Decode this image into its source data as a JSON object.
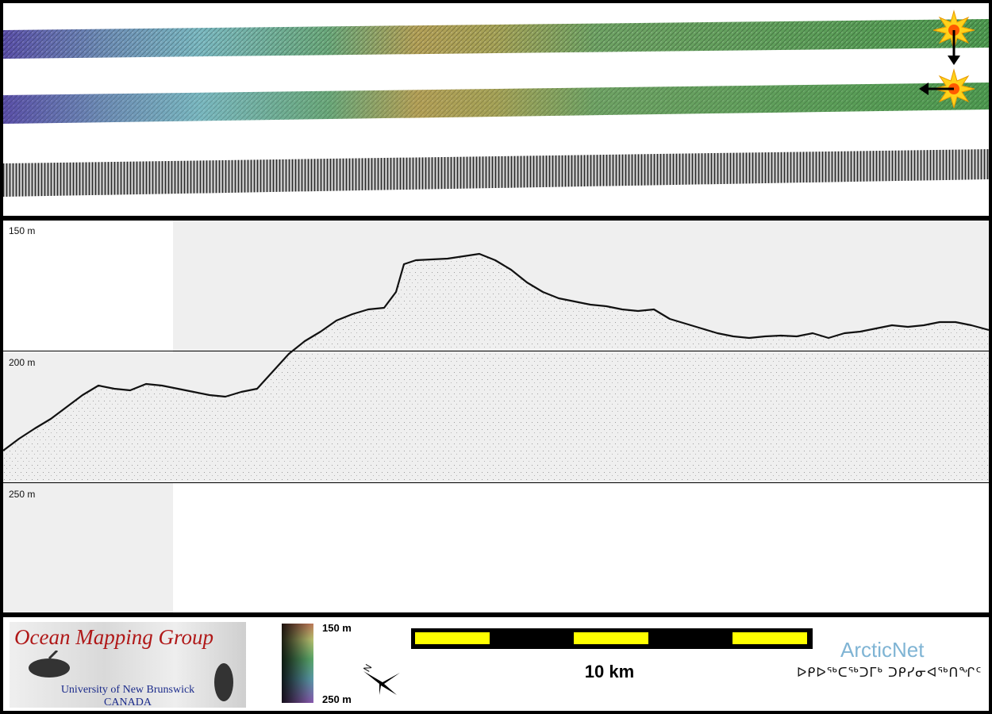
{
  "swath_view": {
    "strips": [
      "shaded-bathymetry-strip",
      "colour-bathymetry-strip",
      "backscatter-strip"
    ],
    "sun_icon": "sun-icon",
    "arrows": [
      "arrow-down-icon",
      "arrow-left-icon"
    ]
  },
  "profile": {
    "depth_labels": [
      "150 m",
      "200 m",
      "250 m"
    ],
    "gridline_depths_m": [
      150,
      200,
      250
    ]
  },
  "footer": {
    "ocean_logo": {
      "title": "Ocean Mapping Group",
      "line1": "University of New Brunswick",
      "line2": "CANADA"
    },
    "colorbar": {
      "top_label": "150 m",
      "bottom_label": "250 m"
    },
    "north_arrow": {
      "letter": "N"
    },
    "scale_bar": {
      "label": "10 km"
    },
    "arcticnet": {
      "title": "ArcticNet",
      "syllabics": "ᐅᑭᐅᖅᑕᖅᑐᒥᒃ ᑐᑭᓯᓂᐊᖅᑎᖏᑦ"
    }
  },
  "colors": {
    "scale_yellow": "#ffff00",
    "logo_red": "#b01818",
    "arcticnet_blue": "#7fb4d4"
  }
}
